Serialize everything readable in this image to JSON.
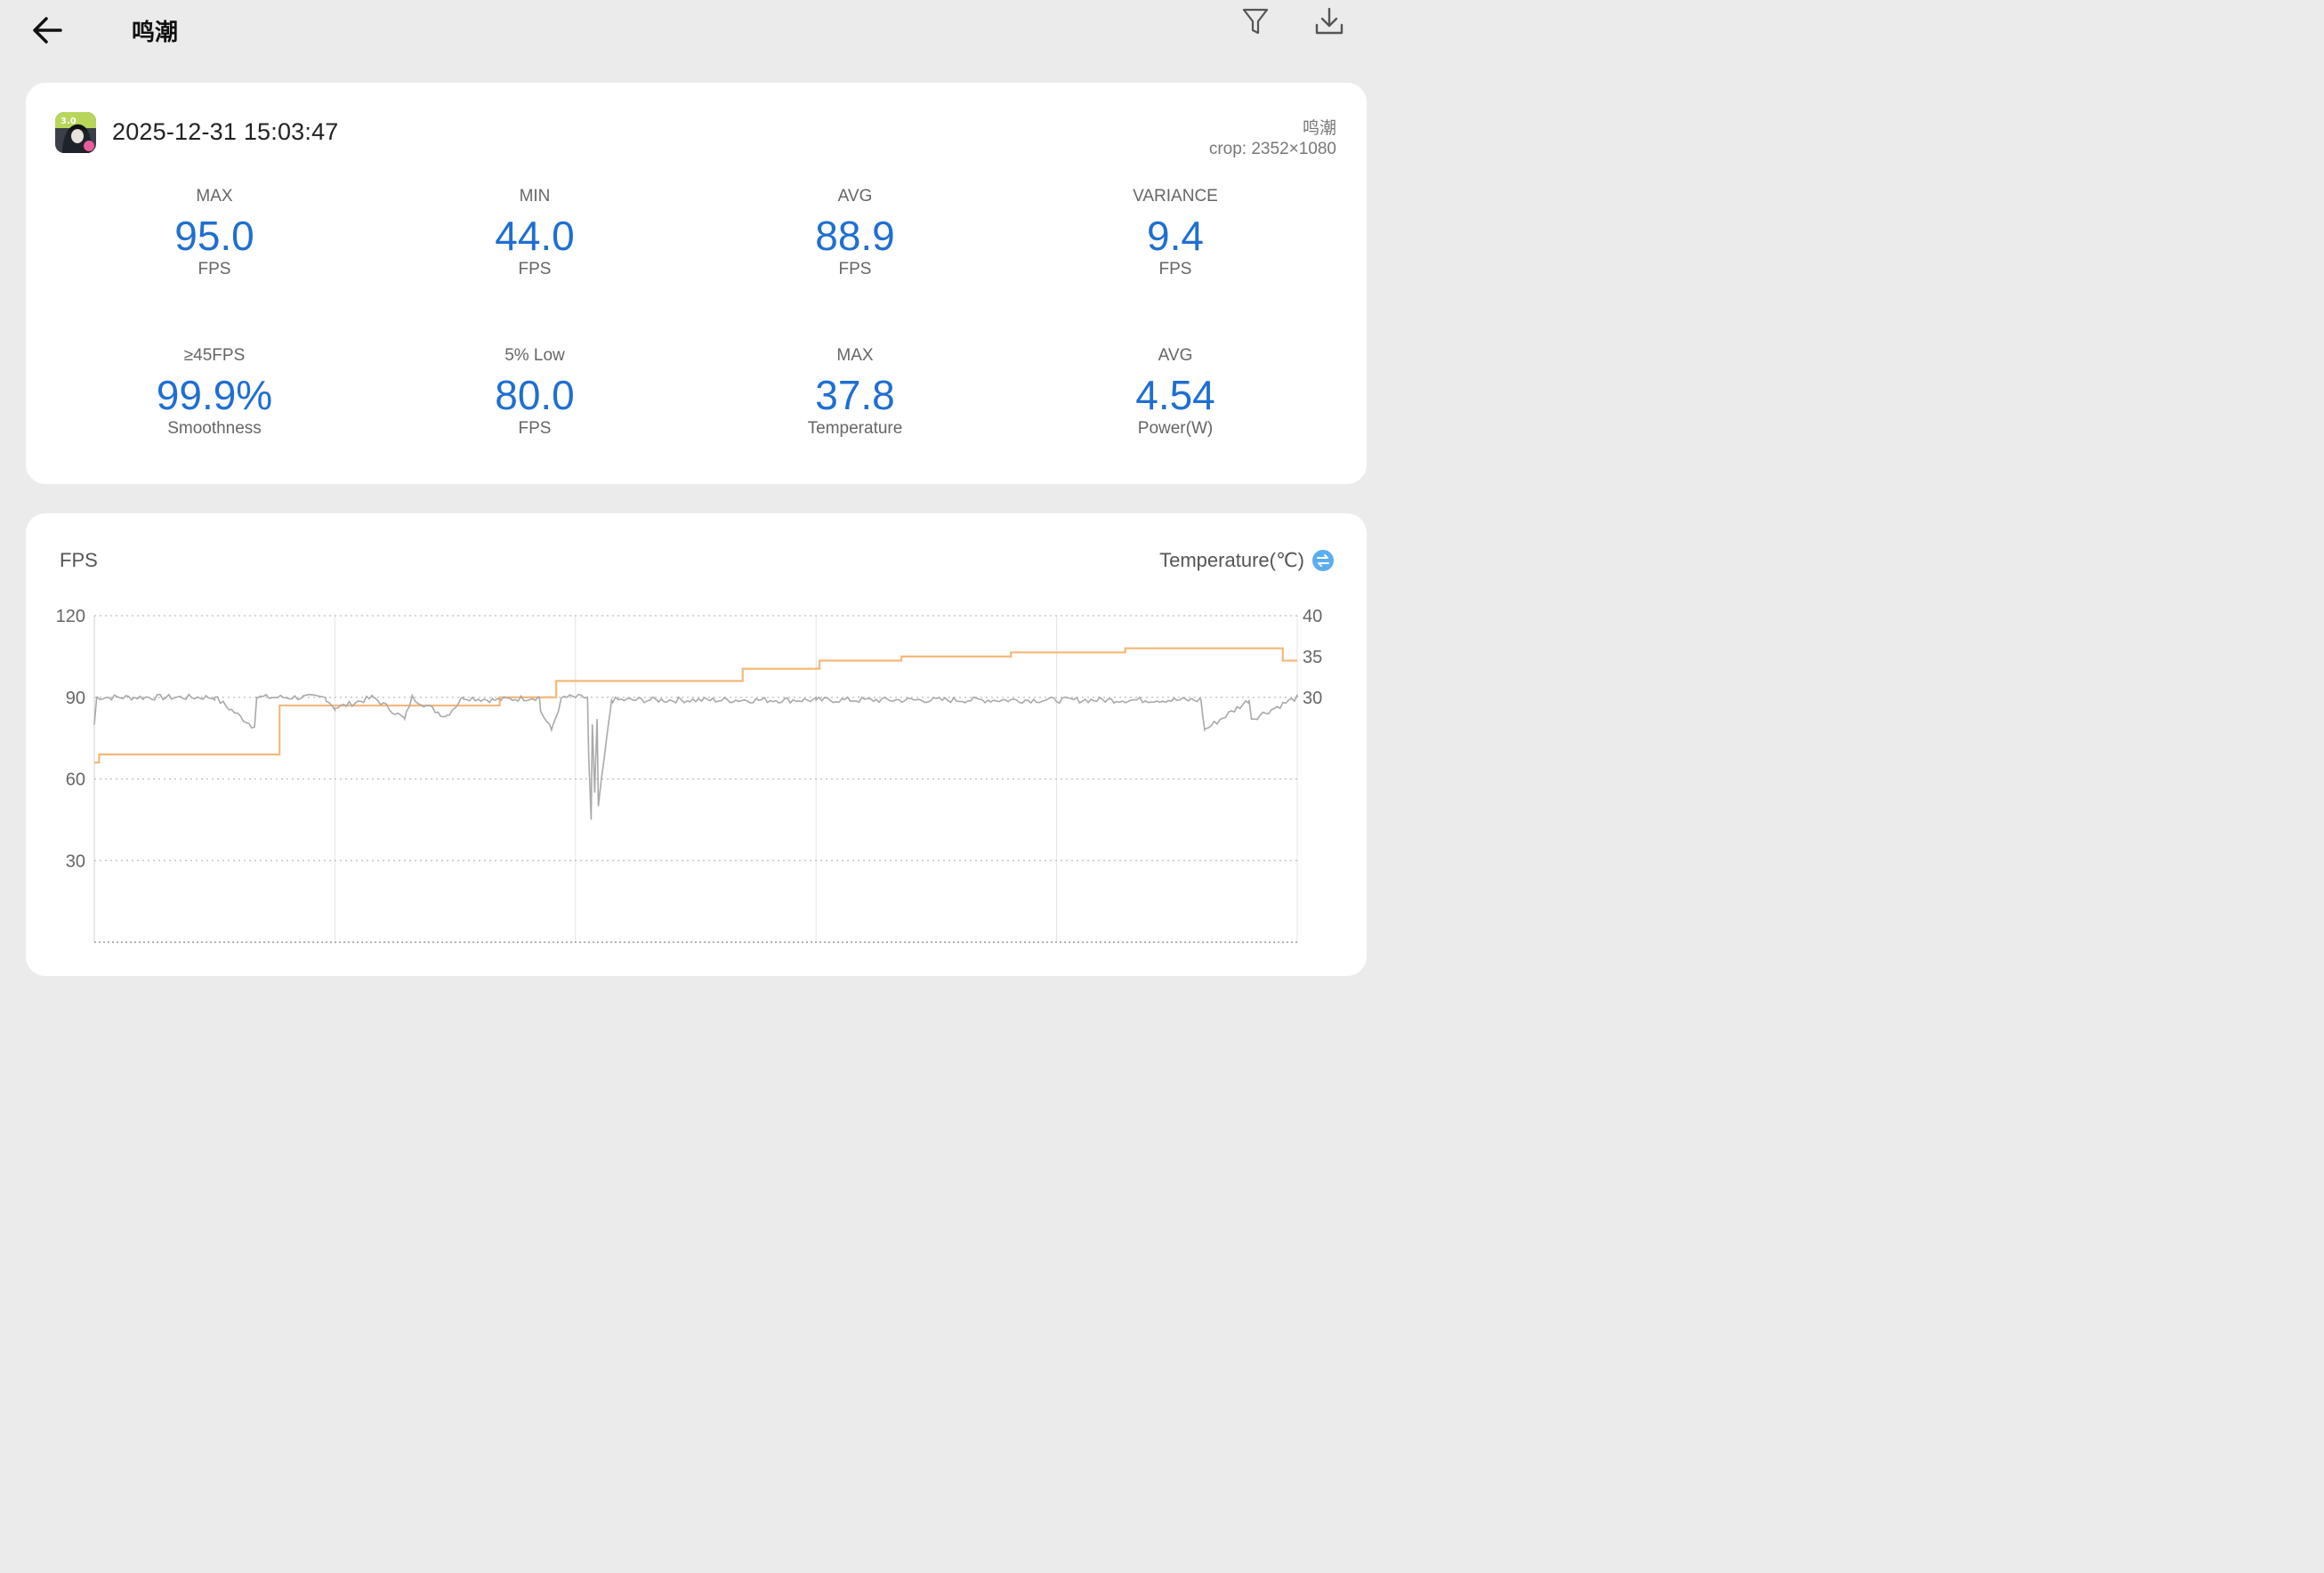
{
  "header": {
    "title": "鸣潮",
    "back_icon": "arrow-left-icon",
    "filter_icon": "filter-icon",
    "download_icon": "download-icon"
  },
  "session": {
    "datetime": "2025-12-31 15:03:47",
    "app_name": "鸣潮",
    "crop": "crop: 2352×1080"
  },
  "stats": [
    {
      "label": "MAX",
      "value": "95.0",
      "unit": "FPS"
    },
    {
      "label": "MIN",
      "value": "44.0",
      "unit": "FPS"
    },
    {
      "label": "AVG",
      "value": "88.9",
      "unit": "FPS"
    },
    {
      "label": "VARIANCE",
      "value": "9.4",
      "unit": "FPS"
    },
    {
      "label": "≥45FPS",
      "value": "99.9%",
      "unit": "Smoothness"
    },
    {
      "label": "5% Low",
      "value": "80.0",
      "unit": "FPS"
    },
    {
      "label": "MAX",
      "value": "37.8",
      "unit": "Temperature"
    },
    {
      "label": "AVG",
      "value": "4.54",
      "unit": "Power(W)"
    }
  ],
  "colors": {
    "accent": "#1f6fd1",
    "fps_line": "#a9a9a9",
    "temp_line": "#f5b87a",
    "swap_icon": "#5aaef0"
  },
  "chart": {
    "left_title": "FPS",
    "right_title": "Temperature(℃)",
    "swap_icon": "swap-icon"
  },
  "chart_data": {
    "type": "line",
    "left_axis": {
      "ticks": [
        "120",
        "90",
        "60",
        "30"
      ],
      "ylim": [
        0,
        120
      ]
    },
    "right_axis": {
      "ticks": [
        "40",
        "35",
        "30"
      ],
      "ylim": [
        0,
        40
      ]
    },
    "grid": true,
    "series": [
      {
        "name": "FPS",
        "axis": "left",
        "x": [
          0.0,
          0.002,
          0.1,
          0.133,
          0.135,
          0.192,
          0.2,
          0.232,
          0.258,
          0.264,
          0.292,
          0.307,
          0.332,
          0.37,
          0.371,
          0.38,
          0.389,
          0.41,
          0.411,
          0.413,
          0.414,
          0.416,
          0.418,
          0.419,
          0.43,
          0.6,
          0.92,
          0.923,
          0.96,
          0.962,
          1.0
        ],
        "y": [
          80,
          90,
          90,
          79,
          90,
          90,
          86,
          90,
          82,
          90,
          83,
          90,
          89,
          90,
          85,
          78,
          90,
          90,
          68,
          45,
          80,
          55,
          82,
          50,
          89,
          89,
          89,
          78,
          89,
          82,
          90
        ]
      },
      {
        "name": "Temperature(℃)",
        "axis": "right",
        "x": [
          0.0,
          0.004,
          0.112,
          0.154,
          0.337,
          0.38,
          0.384,
          0.537,
          0.539,
          0.6,
          0.603,
          0.67,
          0.671,
          0.76,
          0.762,
          0.854,
          0.857,
          0.987,
          0.988,
          1.0
        ],
        "y": [
          22,
          23,
          23,
          29,
          30,
          30,
          32,
          32,
          33.5,
          33.5,
          34.5,
          34.5,
          35,
          35,
          35.5,
          35.5,
          36,
          36,
          34.5,
          34.5
        ]
      }
    ]
  }
}
